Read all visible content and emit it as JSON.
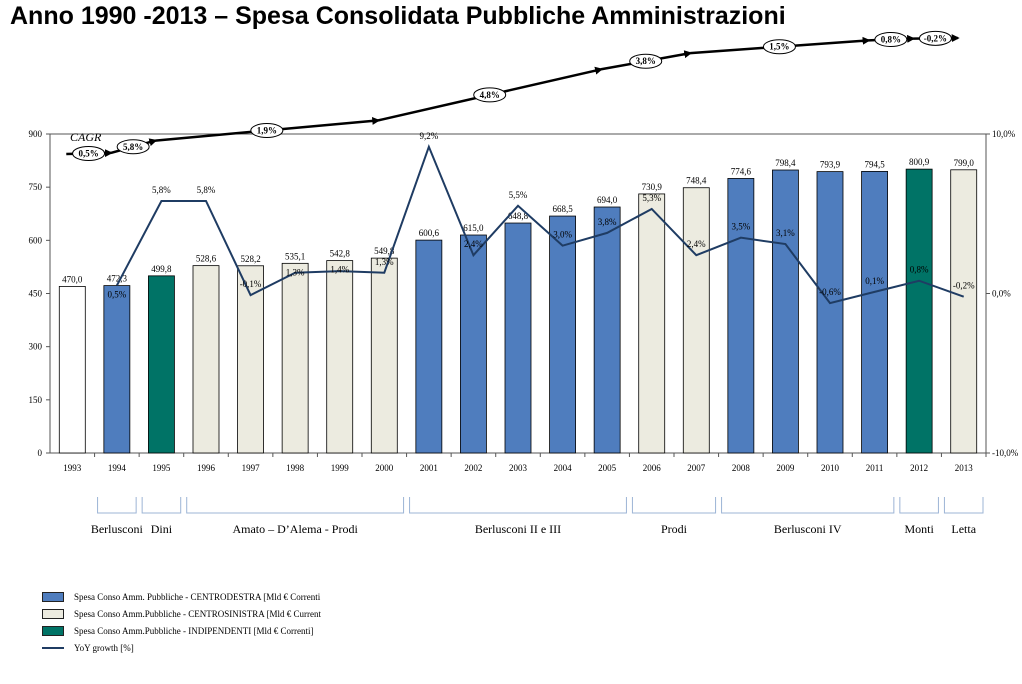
{
  "title": "Anno 1990 -2013 – Spesa Consolidata Pubbliche Amministrazioni",
  "chart_data": {
    "type": "bar",
    "title": "Anno 1990 -2013 – Spesa Consolidata Pubbliche Amministrazioni",
    "categories": [
      "1993",
      "1994",
      "1995",
      "1996",
      "1997",
      "1998",
      "1999",
      "2000",
      "2001",
      "2002",
      "2003",
      "2004",
      "2005",
      "2006",
      "2007",
      "2008",
      "2009",
      "2010",
      "2011",
      "2012",
      "2013"
    ],
    "series": [
      {
        "name": "Spesa Consolidata",
        "values": [
          470.0,
          472.3,
          499.8,
          528.6,
          528.2,
          535.1,
          542.8,
          549.8,
          600.6,
          615.0,
          648.8,
          668.5,
          694.0,
          730.9,
          748.4,
          774.6,
          798.4,
          793.9,
          794.5,
          800.9,
          799.0
        ],
        "value_labels": [
          "470,0",
          "472,3",
          "499,8",
          "528,6",
          "528,2",
          "535,1",
          "542,8",
          "549,8",
          "600,6",
          "615,0",
          "648,8",
          "668,5",
          "694,0",
          "730,9",
          "748,4",
          "774,6",
          "798,4",
          "793,9",
          "794,5",
          "800,9",
          "799,0"
        ],
        "groups": [
          "none",
          "cd",
          "ind",
          "cs",
          "cs",
          "cs",
          "cs",
          "cs",
          "cd",
          "cd",
          "cd",
          "cd",
          "cd",
          "cs",
          "cs",
          "cd",
          "cd",
          "cd",
          "cd",
          "ind",
          "cs"
        ]
      },
      {
        "name": "YoY growth [%]",
        "type": "line",
        "axis": "secondary",
        "values": [
          null,
          0.5,
          5.8,
          5.8,
          -0.1,
          1.3,
          1.4,
          1.3,
          9.2,
          2.4,
          5.5,
          3.0,
          3.8,
          5.3,
          2.4,
          3.5,
          3.1,
          -0.6,
          0.1,
          0.8,
          -0.2
        ],
        "value_labels": [
          "",
          "0,5%",
          "5,8%",
          "5,8%",
          "-0,1%",
          "1,3%",
          "1,4%",
          "1,3%",
          "9,2%",
          "2,4%",
          "5,5%",
          "3,0%",
          "3,8%",
          "5,3%",
          "2,4%",
          "3,5%",
          "3,1%",
          "-0,6%",
          "0,1%",
          "0,8%",
          "-0,2%"
        ]
      }
    ],
    "ylim": [
      0,
      900
    ],
    "yticks": [
      "0",
      "150",
      "300",
      "450",
      "600",
      "750",
      "900"
    ],
    "y2lim": [
      -10,
      10
    ],
    "y2ticks": [
      "-10,0%",
      "0,0%",
      "10,0%"
    ],
    "xlabel": "",
    "ylabel": "",
    "colors": {
      "cd": "#4f7dbe",
      "cs": "#ecebe0",
      "ind": "#007366",
      "none": "#ffffff",
      "line": "#1f3c63"
    },
    "cagr": {
      "label": "CAGR",
      "segments": [
        {
          "value": "0,5%",
          "from_year": 1993,
          "to_year": 1994
        },
        {
          "value": "5,8%",
          "from_year": 1994,
          "to_year": 1995
        },
        {
          "value": "1,9%",
          "from_year": 1995,
          "to_year": 2000
        },
        {
          "value": "4,8%",
          "from_year": 2000,
          "to_year": 2005
        },
        {
          "value": "3,8%",
          "from_year": 2005,
          "to_year": 2007
        },
        {
          "value": "1,5%",
          "from_year": 2007,
          "to_year": 2011
        },
        {
          "value": "0,8%",
          "from_year": 2011,
          "to_year": 2012
        },
        {
          "value": "-0,2%",
          "from_year": 2012,
          "to_year": 2013
        }
      ]
    },
    "governments": [
      {
        "label": "Berlusconi",
        "from": 1994,
        "to": 1994
      },
      {
        "label": "Dini",
        "from": 1995,
        "to": 1995
      },
      {
        "label": "Amato – D’Alema  - Prodi",
        "from": 1996,
        "to": 2000
      },
      {
        "label": "Berlusconi II e III",
        "from": 2001,
        "to": 2005
      },
      {
        "label": "Prodi",
        "from": 2006,
        "to": 2007
      },
      {
        "label": "Berlusconi IV",
        "from": 2008,
        "to": 2011
      },
      {
        "label": "Monti",
        "from": 2012,
        "to": 2012
      },
      {
        "label": "Letta",
        "from": 2013,
        "to": 2013
      }
    ],
    "legend": [
      {
        "label": "Spesa Conso Amm. Pubbliche - CENTRODESTRA [Mld € Correnti",
        "kind": "cd"
      },
      {
        "label": "Spesa Conso Amm.Pubbliche - CENTROSINISTRA [Mld € Current",
        "kind": "cs"
      },
      {
        "label": "Spesa Conso Amm.Pubbliche - INDIPENDENTI [Mld € Correnti]",
        "kind": "ind"
      },
      {
        "label": "YoY growth [%]",
        "kind": "line"
      }
    ]
  }
}
